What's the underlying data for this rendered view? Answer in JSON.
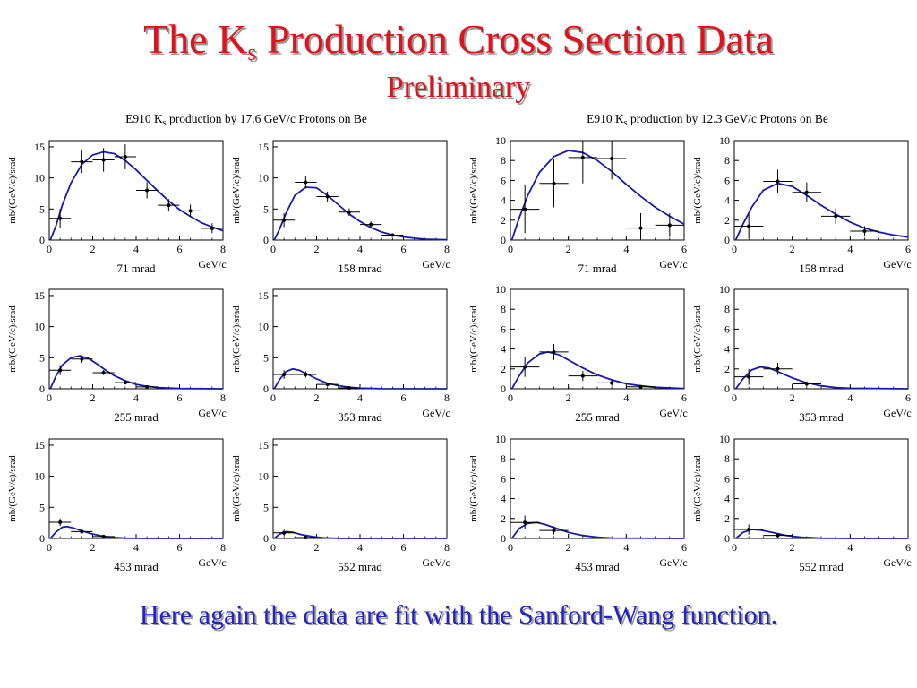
{
  "header": {
    "title_main": "The K",
    "title_sub": "s",
    "title_rest": " Production Cross Section Data",
    "subtitle": "Preliminary"
  },
  "panels": {
    "left": {
      "title_pre": "E910 K",
      "title_sub": "s",
      "title_post": " production by 17.6 GeV/c Protons on Be"
    },
    "right": {
      "title_pre": "E910 K",
      "title_sub": "s",
      "title_post": " production by 12.3 GeV/c Protons on Be"
    }
  },
  "footer": {
    "caption": "Here again the data are fit with the Sanford-Wang function."
  },
  "colors": {
    "title": "#e0121b",
    "caption": "#2222c8",
    "fit_curve": "#1a1aa8",
    "data": "#000000"
  },
  "chart_data": [
    {
      "type": "scatter",
      "panel": "left",
      "angle_label": "71 mrad",
      "xlabel": "GeV/c",
      "ylabel": "mb/(GeV/c)/srad",
      "xlim": [
        0,
        8
      ],
      "ylim": [
        0,
        16
      ],
      "xticks": [
        "0",
        "2",
        "4",
        "6",
        "8"
      ],
      "yticks": [
        "0",
        "5",
        "10",
        "15"
      ],
      "points": [
        {
          "x": 0.5,
          "y": 3.5,
          "xerr": 0.5,
          "yerr": 1.5
        },
        {
          "x": 1.5,
          "y": 12.6,
          "xerr": 0.5,
          "yerr": 1.8
        },
        {
          "x": 2.5,
          "y": 12.9,
          "xerr": 0.5,
          "yerr": 1.9
        },
        {
          "x": 3.5,
          "y": 13.4,
          "xerr": 0.5,
          "yerr": 2.0
        },
        {
          "x": 4.5,
          "y": 8.0,
          "xerr": 0.5,
          "yerr": 1.3
        },
        {
          "x": 5.5,
          "y": 5.6,
          "xerr": 0.5,
          "yerr": 1.0
        },
        {
          "x": 6.5,
          "y": 4.7,
          "xerr": 0.5,
          "yerr": 1.0
        },
        {
          "x": 7.5,
          "y": 1.9,
          "xerr": 0.5,
          "yerr": 0.8
        }
      ],
      "fit": [
        [
          0.05,
          0
        ],
        [
          0.3,
          2.2
        ],
        [
          0.6,
          5.6
        ],
        [
          1.0,
          9.2
        ],
        [
          1.5,
          12.2
        ],
        [
          2.0,
          13.7
        ],
        [
          2.5,
          14.2
        ],
        [
          3.0,
          13.9
        ],
        [
          3.5,
          12.8
        ],
        [
          4.0,
          11.3
        ],
        [
          4.5,
          9.6
        ],
        [
          5.0,
          7.9
        ],
        [
          5.5,
          6.3
        ],
        [
          6.0,
          4.9
        ],
        [
          6.5,
          3.8
        ],
        [
          7.0,
          2.8
        ],
        [
          7.5,
          2.1
        ],
        [
          8.0,
          1.5
        ]
      ]
    },
    {
      "type": "scatter",
      "panel": "left",
      "angle_label": "158 mrad",
      "xlabel": "GeV/c",
      "ylabel": "mb/(GeV/c)/srad",
      "xlim": [
        0,
        8
      ],
      "ylim": [
        0,
        16
      ],
      "xticks": [
        "0",
        "2",
        "4",
        "6",
        "8"
      ],
      "yticks": [
        "0",
        "5",
        "10",
        "15"
      ],
      "points": [
        {
          "x": 0.5,
          "y": 3.2,
          "xerr": 0.5,
          "yerr": 1.1
        },
        {
          "x": 1.5,
          "y": 9.3,
          "xerr": 0.5,
          "yerr": 1.0
        },
        {
          "x": 2.5,
          "y": 7.0,
          "xerr": 0.5,
          "yerr": 0.8
        },
        {
          "x": 3.5,
          "y": 4.5,
          "xerr": 0.5,
          "yerr": 0.6
        },
        {
          "x": 4.5,
          "y": 2.5,
          "xerr": 0.5,
          "yerr": 0.5
        },
        {
          "x": 5.5,
          "y": 0.8,
          "xerr": 0.5,
          "yerr": 0.3
        }
      ],
      "fit": [
        [
          0.05,
          0
        ],
        [
          0.3,
          1.8
        ],
        [
          0.6,
          4.4
        ],
        [
          1.0,
          7.2
        ],
        [
          1.5,
          8.5
        ],
        [
          2.0,
          8.4
        ],
        [
          2.5,
          7.2
        ],
        [
          3.0,
          5.7
        ],
        [
          3.5,
          4.2
        ],
        [
          4.0,
          3.0
        ],
        [
          4.5,
          2.0
        ],
        [
          5.0,
          1.3
        ],
        [
          5.5,
          0.8
        ],
        [
          6.0,
          0.5
        ],
        [
          6.5,
          0.3
        ],
        [
          7.0,
          0.15
        ],
        [
          8.0,
          0.05
        ]
      ]
    },
    {
      "type": "scatter",
      "panel": "left",
      "angle_label": "255 mrad",
      "xlabel": "GeV/c",
      "ylabel": "mb/(GeV/c)/srad",
      "xlim": [
        0,
        8
      ],
      "ylim": [
        0,
        16
      ],
      "xticks": [
        "0",
        "2",
        "4",
        "6",
        "8"
      ],
      "yticks": [
        "0",
        "5",
        "10",
        "15"
      ],
      "points": [
        {
          "x": 0.5,
          "y": 3.0,
          "xerr": 0.5,
          "yerr": 0.8
        },
        {
          "x": 1.5,
          "y": 4.8,
          "xerr": 0.5,
          "yerr": 0.6
        },
        {
          "x": 2.5,
          "y": 2.6,
          "xerr": 0.5,
          "yerr": 0.4
        },
        {
          "x": 3.5,
          "y": 1.0,
          "xerr": 0.5,
          "yerr": 0.3
        },
        {
          "x": 4.5,
          "y": 0.3,
          "xerr": 0.5,
          "yerr": 0.15
        }
      ],
      "fit": [
        [
          0.05,
          0
        ],
        [
          0.3,
          2.0
        ],
        [
          0.6,
          3.8
        ],
        [
          1.0,
          5.0
        ],
        [
          1.4,
          5.3
        ],
        [
          1.8,
          4.9
        ],
        [
          2.2,
          4.0
        ],
        [
          2.6,
          3.0
        ],
        [
          3.0,
          2.1
        ],
        [
          3.5,
          1.3
        ],
        [
          4.0,
          0.7
        ],
        [
          4.5,
          0.4
        ],
        [
          5.0,
          0.2
        ],
        [
          6.0,
          0.05
        ],
        [
          8.0,
          0
        ]
      ]
    },
    {
      "type": "scatter",
      "panel": "left",
      "angle_label": "353 mrad",
      "xlabel": "GeV/c",
      "ylabel": "mb/(GeV/c)/srad",
      "xlim": [
        0,
        8
      ],
      "ylim": [
        0,
        16
      ],
      "xticks": [
        "0",
        "2",
        "4",
        "6",
        "8"
      ],
      "yticks": [
        "0",
        "5",
        "10",
        "15"
      ],
      "points": [
        {
          "x": 0.5,
          "y": 2.3,
          "xerr": 0.5,
          "yerr": 0.7
        },
        {
          "x": 1.5,
          "y": 2.3,
          "xerr": 0.5,
          "yerr": 0.5
        },
        {
          "x": 2.5,
          "y": 0.7,
          "xerr": 0.5,
          "yerr": 0.2
        },
        {
          "x": 3.5,
          "y": 0.15,
          "xerr": 0.5,
          "yerr": 0.1
        }
      ],
      "fit": [
        [
          0.05,
          0
        ],
        [
          0.3,
          1.5
        ],
        [
          0.6,
          2.8
        ],
        [
          0.9,
          3.2
        ],
        [
          1.2,
          3.0
        ],
        [
          1.6,
          2.3
        ],
        [
          2.0,
          1.6
        ],
        [
          2.5,
          0.9
        ],
        [
          3.0,
          0.5
        ],
        [
          3.5,
          0.25
        ],
        [
          4.0,
          0.1
        ],
        [
          5.0,
          0.02
        ],
        [
          8.0,
          0
        ]
      ]
    },
    {
      "type": "scatter",
      "panel": "left",
      "angle_label": "453 mrad",
      "xlabel": "GeV/c",
      "ylabel": "mb/(GeV/c)/srad",
      "xlim": [
        0,
        8
      ],
      "ylim": [
        0,
        16
      ],
      "xticks": [
        "0",
        "2",
        "4",
        "6",
        "8"
      ],
      "yticks": [
        "0",
        "5",
        "10",
        "15"
      ],
      "points": [
        {
          "x": 0.5,
          "y": 2.6,
          "xerr": 0.5,
          "yerr": 0.6
        },
        {
          "x": 1.5,
          "y": 1.1,
          "xerr": 0.5,
          "yerr": 0.3
        },
        {
          "x": 2.5,
          "y": 0.3,
          "xerr": 0.5,
          "yerr": 0.15
        }
      ],
      "fit": [
        [
          0.05,
          0
        ],
        [
          0.3,
          1.0
        ],
        [
          0.6,
          1.8
        ],
        [
          0.8,
          1.9
        ],
        [
          1.1,
          1.7
        ],
        [
          1.5,
          1.2
        ],
        [
          2.0,
          0.7
        ],
        [
          2.5,
          0.35
        ],
        [
          3.0,
          0.15
        ],
        [
          3.5,
          0.05
        ],
        [
          4.5,
          0
        ],
        [
          8.0,
          0
        ]
      ]
    },
    {
      "type": "scatter",
      "panel": "left",
      "angle_label": "552 mrad",
      "xlabel": "GeV/c",
      "ylabel": "mb/(GeV/c)/srad",
      "xlim": [
        0,
        8
      ],
      "ylim": [
        0,
        16
      ],
      "xticks": [
        "0",
        "2",
        "4",
        "6",
        "8"
      ],
      "yticks": [
        "0",
        "5",
        "10",
        "15"
      ],
      "points": [
        {
          "x": 0.5,
          "y": 0.9,
          "xerr": 0.5,
          "yerr": 0.5
        },
        {
          "x": 1.5,
          "y": 0.15,
          "xerr": 0.5,
          "yerr": 0.1
        }
      ],
      "fit": [
        [
          0.05,
          0
        ],
        [
          0.3,
          0.7
        ],
        [
          0.6,
          1.1
        ],
        [
          0.9,
          1.0
        ],
        [
          1.3,
          0.6
        ],
        [
          1.8,
          0.3
        ],
        [
          2.3,
          0.1
        ],
        [
          3.0,
          0.02
        ],
        [
          4.0,
          0
        ],
        [
          8.0,
          0
        ]
      ]
    },
    {
      "type": "scatter",
      "panel": "right",
      "angle_label": "71 mrad",
      "xlabel": "GeV/c",
      "ylabel": "mb/(GeV/c)/srad",
      "xlim": [
        0,
        6
      ],
      "ylim": [
        0,
        10
      ],
      "xticks": [
        "0",
        "2",
        "4",
        "6"
      ],
      "yticks": [
        "0",
        "2",
        "4",
        "6",
        "8",
        "10"
      ],
      "points": [
        {
          "x": 0.5,
          "y": 3.1,
          "xerr": 0.5,
          "yerr": 2.4
        },
        {
          "x": 1.5,
          "y": 5.7,
          "xerr": 0.5,
          "yerr": 2.4
        },
        {
          "x": 2.5,
          "y": 8.3,
          "xerr": 0.5,
          "yerr": 2.6
        },
        {
          "x": 3.5,
          "y": 8.2,
          "xerr": 0.5,
          "yerr": 2.1
        },
        {
          "x": 4.5,
          "y": 1.2,
          "xerr": 0.5,
          "yerr": 1.5
        },
        {
          "x": 5.5,
          "y": 1.5,
          "xerr": 0.5,
          "yerr": 1.2
        }
      ],
      "fit": [
        [
          0.05,
          0
        ],
        [
          0.3,
          2.2
        ],
        [
          0.6,
          4.5
        ],
        [
          1.0,
          6.8
        ],
        [
          1.5,
          8.4
        ],
        [
          2.0,
          9.0
        ],
        [
          2.5,
          8.8
        ],
        [
          3.0,
          8.0
        ],
        [
          3.5,
          6.9
        ],
        [
          4.0,
          5.6
        ],
        [
          4.5,
          4.4
        ],
        [
          5.0,
          3.3
        ],
        [
          5.5,
          2.4
        ],
        [
          6.0,
          1.6
        ]
      ]
    },
    {
      "type": "scatter",
      "panel": "right",
      "angle_label": "158 mrad",
      "xlabel": "GeV/c",
      "ylabel": "mb/(GeV/c)/srad",
      "xlim": [
        0,
        6
      ],
      "ylim": [
        0,
        10
      ],
      "xticks": [
        "0",
        "2",
        "4",
        "6"
      ],
      "yticks": [
        "0",
        "2",
        "4",
        "6",
        "8",
        "10"
      ],
      "points": [
        {
          "x": 0.5,
          "y": 1.4,
          "xerr": 0.5,
          "yerr": 1.2
        },
        {
          "x": 1.5,
          "y": 5.9,
          "xerr": 0.5,
          "yerr": 1.2
        },
        {
          "x": 2.5,
          "y": 4.8,
          "xerr": 0.5,
          "yerr": 1.0
        },
        {
          "x": 3.5,
          "y": 2.4,
          "xerr": 0.5,
          "yerr": 0.8
        },
        {
          "x": 4.5,
          "y": 0.9,
          "xerr": 0.5,
          "yerr": 0.5
        }
      ],
      "fit": [
        [
          0.05,
          0
        ],
        [
          0.3,
          1.6
        ],
        [
          0.6,
          3.3
        ],
        [
          1.0,
          5.0
        ],
        [
          1.5,
          5.7
        ],
        [
          2.0,
          5.4
        ],
        [
          2.5,
          4.5
        ],
        [
          3.0,
          3.5
        ],
        [
          3.5,
          2.6
        ],
        [
          4.0,
          1.8
        ],
        [
          4.5,
          1.2
        ],
        [
          5.0,
          0.8
        ],
        [
          5.5,
          0.5
        ],
        [
          6.0,
          0.3
        ]
      ]
    },
    {
      "type": "scatter",
      "panel": "right",
      "angle_label": "255 mrad",
      "xlabel": "GeV/c",
      "ylabel": "mb/(GeV/c)/srad",
      "xlim": [
        0,
        6
      ],
      "ylim": [
        0,
        10
      ],
      "xticks": [
        "0",
        "2",
        "4",
        "6"
      ],
      "yticks": [
        "0",
        "2",
        "4",
        "6",
        "8",
        "10"
      ],
      "points": [
        {
          "x": 0.5,
          "y": 2.2,
          "xerr": 0.5,
          "yerr": 1.0
        },
        {
          "x": 1.5,
          "y": 3.7,
          "xerr": 0.5,
          "yerr": 0.8
        },
        {
          "x": 2.5,
          "y": 1.3,
          "xerr": 0.5,
          "yerr": 0.5
        },
        {
          "x": 3.5,
          "y": 0.6,
          "xerr": 0.5,
          "yerr": 0.3
        },
        {
          "x": 4.5,
          "y": 0.2,
          "xerr": 0.5,
          "yerr": 0.15
        }
      ],
      "fit": [
        [
          0.05,
          0
        ],
        [
          0.3,
          1.3
        ],
        [
          0.6,
          2.6
        ],
        [
          1.0,
          3.5
        ],
        [
          1.3,
          3.7
        ],
        [
          1.7,
          3.4
        ],
        [
          2.0,
          2.9
        ],
        [
          2.5,
          2.1
        ],
        [
          3.0,
          1.4
        ],
        [
          3.5,
          0.9
        ],
        [
          4.0,
          0.5
        ],
        [
          4.5,
          0.3
        ],
        [
          5.0,
          0.15
        ],
        [
          6.0,
          0.03
        ]
      ]
    },
    {
      "type": "scatter",
      "panel": "right",
      "angle_label": "353 mrad",
      "xlabel": "GeV/c",
      "ylabel": "mb/(GeV/c)/srad",
      "xlim": [
        0,
        6
      ],
      "ylim": [
        0,
        10
      ],
      "xticks": [
        "0",
        "2",
        "4",
        "6"
      ],
      "yticks": [
        "0",
        "2",
        "4",
        "6",
        "8",
        "10"
      ],
      "points": [
        {
          "x": 0.5,
          "y": 1.2,
          "xerr": 0.5,
          "yerr": 0.8
        },
        {
          "x": 1.5,
          "y": 2.0,
          "xerr": 0.5,
          "yerr": 0.6
        },
        {
          "x": 2.5,
          "y": 0.5,
          "xerr": 0.5,
          "yerr": 0.25
        }
      ],
      "fit": [
        [
          0.05,
          0
        ],
        [
          0.3,
          1.0
        ],
        [
          0.6,
          1.9
        ],
        [
          0.9,
          2.2
        ],
        [
          1.2,
          2.1
        ],
        [
          1.6,
          1.6
        ],
        [
          2.0,
          1.1
        ],
        [
          2.5,
          0.6
        ],
        [
          3.0,
          0.3
        ],
        [
          3.5,
          0.12
        ],
        [
          4.0,
          0.05
        ],
        [
          6.0,
          0
        ]
      ]
    },
    {
      "type": "scatter",
      "panel": "right",
      "angle_label": "453 mrad",
      "xlabel": "GeV/c",
      "ylabel": "mb/(GeV/c)/srad",
      "xlim": [
        0,
        6
      ],
      "ylim": [
        0,
        10
      ],
      "xticks": [
        "0",
        "2",
        "4",
        "6"
      ],
      "yticks": [
        "0",
        "2",
        "4",
        "6",
        "8",
        "10"
      ],
      "points": [
        {
          "x": 0.5,
          "y": 1.6,
          "xerr": 0.5,
          "yerr": 0.7
        },
        {
          "x": 1.5,
          "y": 0.8,
          "xerr": 0.5,
          "yerr": 0.4
        }
      ],
      "fit": [
        [
          0.05,
          0
        ],
        [
          0.3,
          1.0
        ],
        [
          0.6,
          1.5
        ],
        [
          0.9,
          1.6
        ],
        [
          1.2,
          1.4
        ],
        [
          1.6,
          1.0
        ],
        [
          2.0,
          0.6
        ],
        [
          2.5,
          0.3
        ],
        [
          3.0,
          0.12
        ],
        [
          3.5,
          0.04
        ],
        [
          6.0,
          0
        ]
      ]
    },
    {
      "type": "scatter",
      "panel": "right",
      "angle_label": "552 mrad",
      "xlabel": "GeV/c",
      "ylabel": "mb/(GeV/c)/srad",
      "xlim": [
        0,
        6
      ],
      "ylim": [
        0,
        10
      ],
      "xticks": [
        "0",
        "2",
        "4",
        "6"
      ],
      "yticks": [
        "0",
        "2",
        "4",
        "6",
        "8",
        "10"
      ],
      "points": [
        {
          "x": 0.5,
          "y": 0.9,
          "xerr": 0.5,
          "yerr": 0.5
        },
        {
          "x": 1.5,
          "y": 0.3,
          "xerr": 0.5,
          "yerr": 0.2
        }
      ],
      "fit": [
        [
          0.05,
          0
        ],
        [
          0.3,
          0.6
        ],
        [
          0.6,
          0.9
        ],
        [
          0.9,
          0.85
        ],
        [
          1.3,
          0.6
        ],
        [
          1.8,
          0.3
        ],
        [
          2.3,
          0.12
        ],
        [
          3.0,
          0.03
        ],
        [
          4.0,
          0
        ],
        [
          6.0,
          0
        ]
      ]
    }
  ]
}
